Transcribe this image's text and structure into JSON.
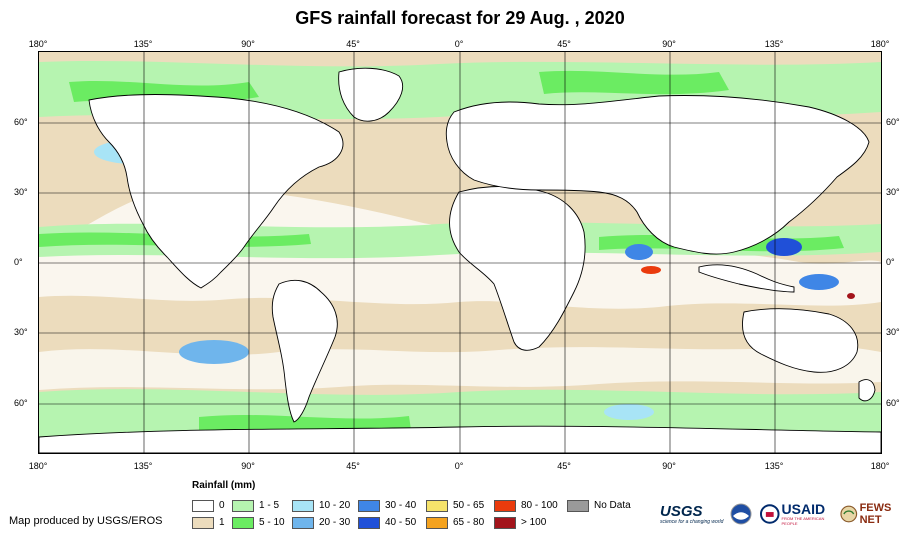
{
  "title": "GFS rainfall forecast for 29 Aug. , 2020",
  "axes": {
    "longitude_ticks": [
      "180°",
      "135°",
      "90°",
      "45°",
      "0°",
      "45°",
      "90°",
      "135°",
      "180°"
    ],
    "latitude_ticks": [
      "60°",
      "30°",
      "0°",
      "30°",
      "60°"
    ]
  },
  "map": {
    "projection": "equirectangular",
    "lon_range": [
      -180,
      180
    ],
    "lat_range": [
      -80,
      90
    ],
    "features": [
      "rainfall-field",
      "continent-outlines",
      "country-borders",
      "graticule"
    ]
  },
  "legend": {
    "title": "Rainfall (mm)",
    "items": [
      {
        "label": "0",
        "color": "#ffffff"
      },
      {
        "label": "1",
        "color": "#ecdcbd"
      },
      {
        "label": "1 - 5",
        "color": "#b6f4b0"
      },
      {
        "label": "5 - 10",
        "color": "#6bec62"
      },
      {
        "label": "10 - 20",
        "color": "#a8e4f6"
      },
      {
        "label": "20 - 30",
        "color": "#6fb5ec"
      },
      {
        "label": "30 - 40",
        "color": "#3f86e6"
      },
      {
        "label": "40 - 50",
        "color": "#2050d8"
      },
      {
        "label": "50 - 65",
        "color": "#f6e36b"
      },
      {
        "label": "65 - 80",
        "color": "#f4a21e"
      },
      {
        "label": "80 - 100",
        "color": "#ea3b0d"
      },
      {
        "label": "> 100",
        "color": "#a3141b"
      },
      {
        "label": "No Data",
        "color": "#9a9a9a"
      }
    ]
  },
  "credit": "Map produced by USGS/EROS",
  "logos": {
    "usgs": "USGS",
    "usgs_tagline": "science for a changing world",
    "usaid": "USAID",
    "usaid_tagline": "FROM THE AMERICAN PEOPLE",
    "fewsnet": "FEWS NET"
  }
}
